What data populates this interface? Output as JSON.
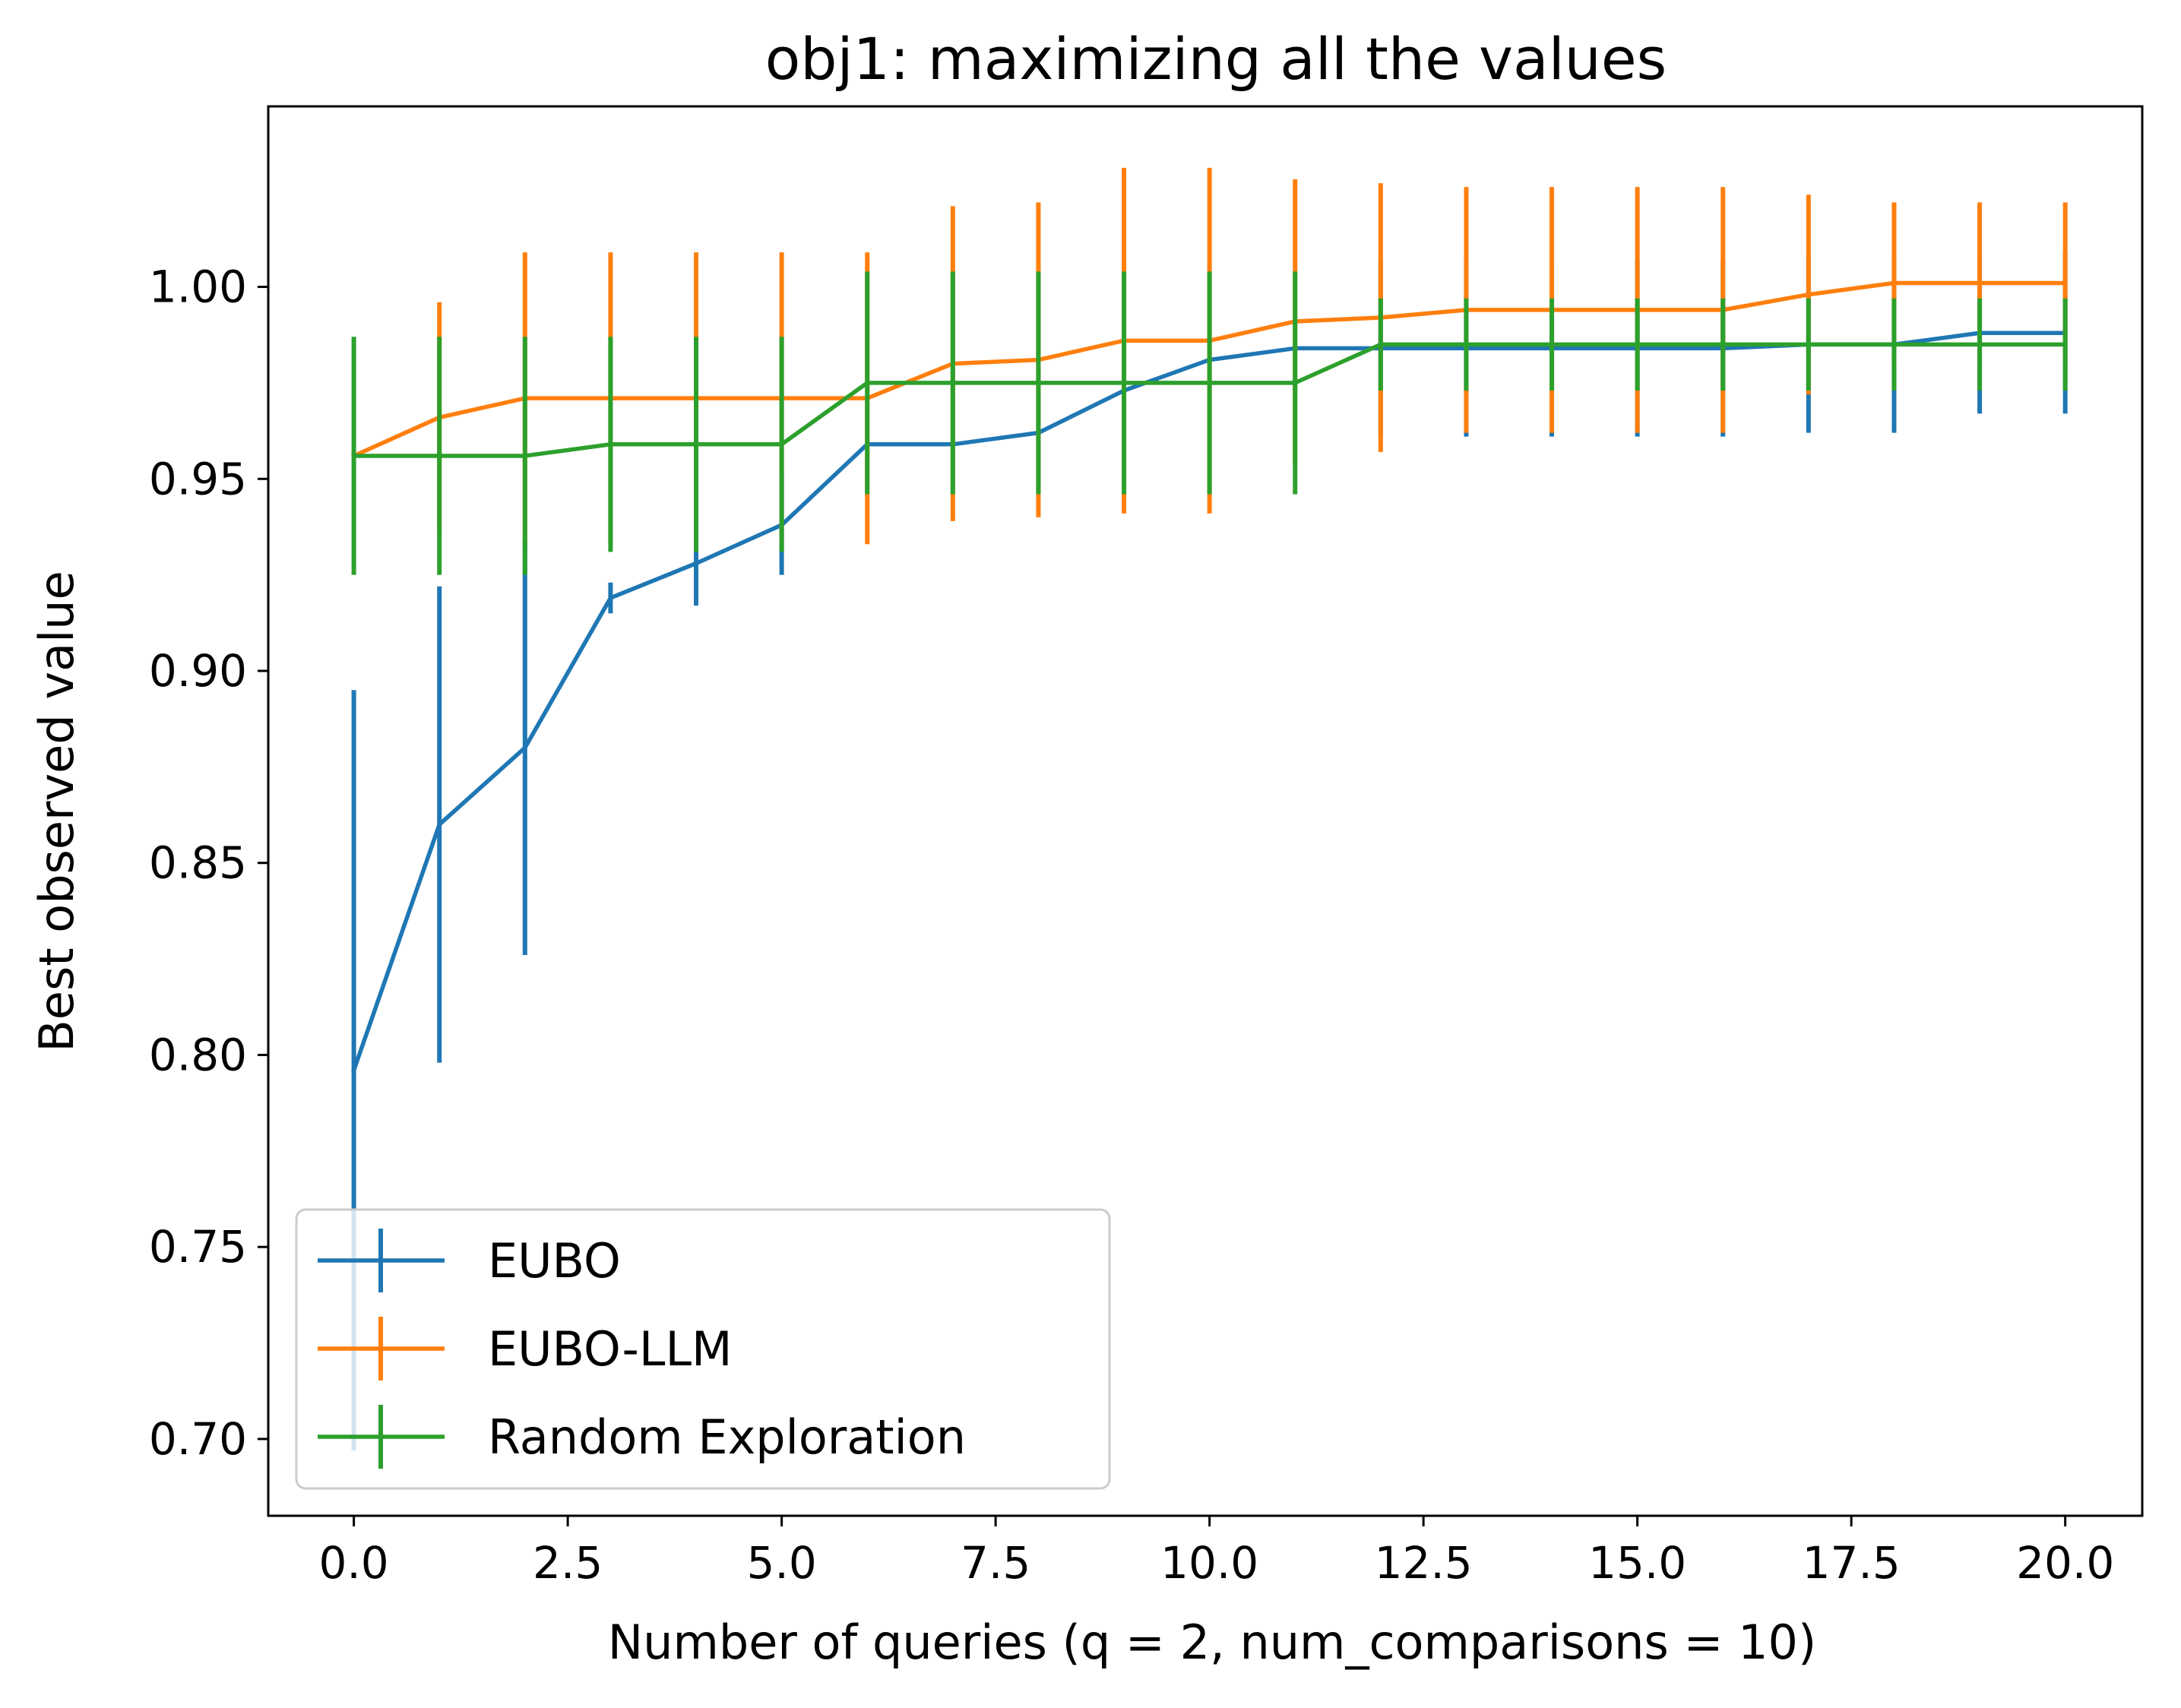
{
  "chart_data": {
    "type": "line",
    "title": "obj1: maximizing all the values",
    "xlabel": "Number of queries (q = 2, num_comparisons = 10)",
    "ylabel": "Best observed value",
    "xlim": [
      -1.0,
      20.9
    ],
    "ylim": [
      0.68,
      1.047
    ],
    "xticks": [
      0.0,
      2.5,
      5.0,
      7.5,
      10.0,
      12.5,
      15.0,
      17.5,
      20.0
    ],
    "xtick_labels": [
      "0.0",
      "2.5",
      "5.0",
      "7.5",
      "10.0",
      "12.5",
      "15.0",
      "17.5",
      "20.0"
    ],
    "yticks": [
      0.7,
      0.75,
      0.8,
      0.85,
      0.9,
      0.95,
      1.0
    ],
    "ytick_labels": [
      "0.70",
      "0.75",
      "0.80",
      "0.85",
      "0.90",
      "0.95",
      "1.00"
    ],
    "grid": false,
    "legend_position": "lower-left",
    "x": [
      0,
      1,
      2,
      3,
      4,
      5,
      6,
      7,
      8,
      9,
      10,
      11,
      12,
      13,
      14,
      15,
      16,
      17,
      18,
      19,
      20
    ],
    "series": [
      {
        "name": "EUBO",
        "color": "#1f77b4",
        "values": [
          0.796,
          0.86,
          0.88,
          0.919,
          0.928,
          0.938,
          0.959,
          0.959,
          0.962,
          0.973,
          0.981,
          0.984,
          0.984,
          0.984,
          0.984,
          0.984,
          0.984,
          0.985,
          0.985,
          0.988,
          0.988
        ],
        "errors": [
          0.099,
          0.062,
          0.054,
          0.004,
          0.011,
          0.013,
          0.0,
          0.0,
          0.0,
          0.0,
          0.0,
          0.0,
          0.023,
          0.023,
          0.023,
          0.023,
          0.023,
          0.023,
          0.023,
          0.021,
          0.021
        ]
      },
      {
        "name": "EUBO-LLM",
        "color": "#ff7f0e",
        "values": [
          0.956,
          0.966,
          0.971,
          0.971,
          0.971,
          0.971,
          0.971,
          0.98,
          0.981,
          0.986,
          0.986,
          0.991,
          0.992,
          0.994,
          0.994,
          0.994,
          0.994,
          0.998,
          1.001,
          1.001,
          1.001
        ],
        "errors": [
          0.0,
          0.03,
          0.038,
          0.038,
          0.038,
          0.038,
          0.038,
          0.041,
          0.041,
          0.045,
          0.045,
          0.037,
          0.035,
          0.032,
          0.032,
          0.032,
          0.032,
          0.026,
          0.021,
          0.021,
          0.021
        ]
      },
      {
        "name": "Random Exploration",
        "color": "#2ca02c",
        "values": [
          0.956,
          0.956,
          0.956,
          0.959,
          0.959,
          0.959,
          0.975,
          0.975,
          0.975,
          0.975,
          0.975,
          0.975,
          0.985,
          0.985,
          0.985,
          0.985,
          0.985,
          0.985,
          0.985,
          0.985,
          0.985
        ],
        "errors": [
          0.031,
          0.031,
          0.031,
          0.028,
          0.028,
          0.028,
          0.029,
          0.029,
          0.029,
          0.029,
          0.029,
          0.029,
          0.012,
          0.012,
          0.012,
          0.012,
          0.012,
          0.012,
          0.012,
          0.012,
          0.012
        ]
      }
    ]
  }
}
